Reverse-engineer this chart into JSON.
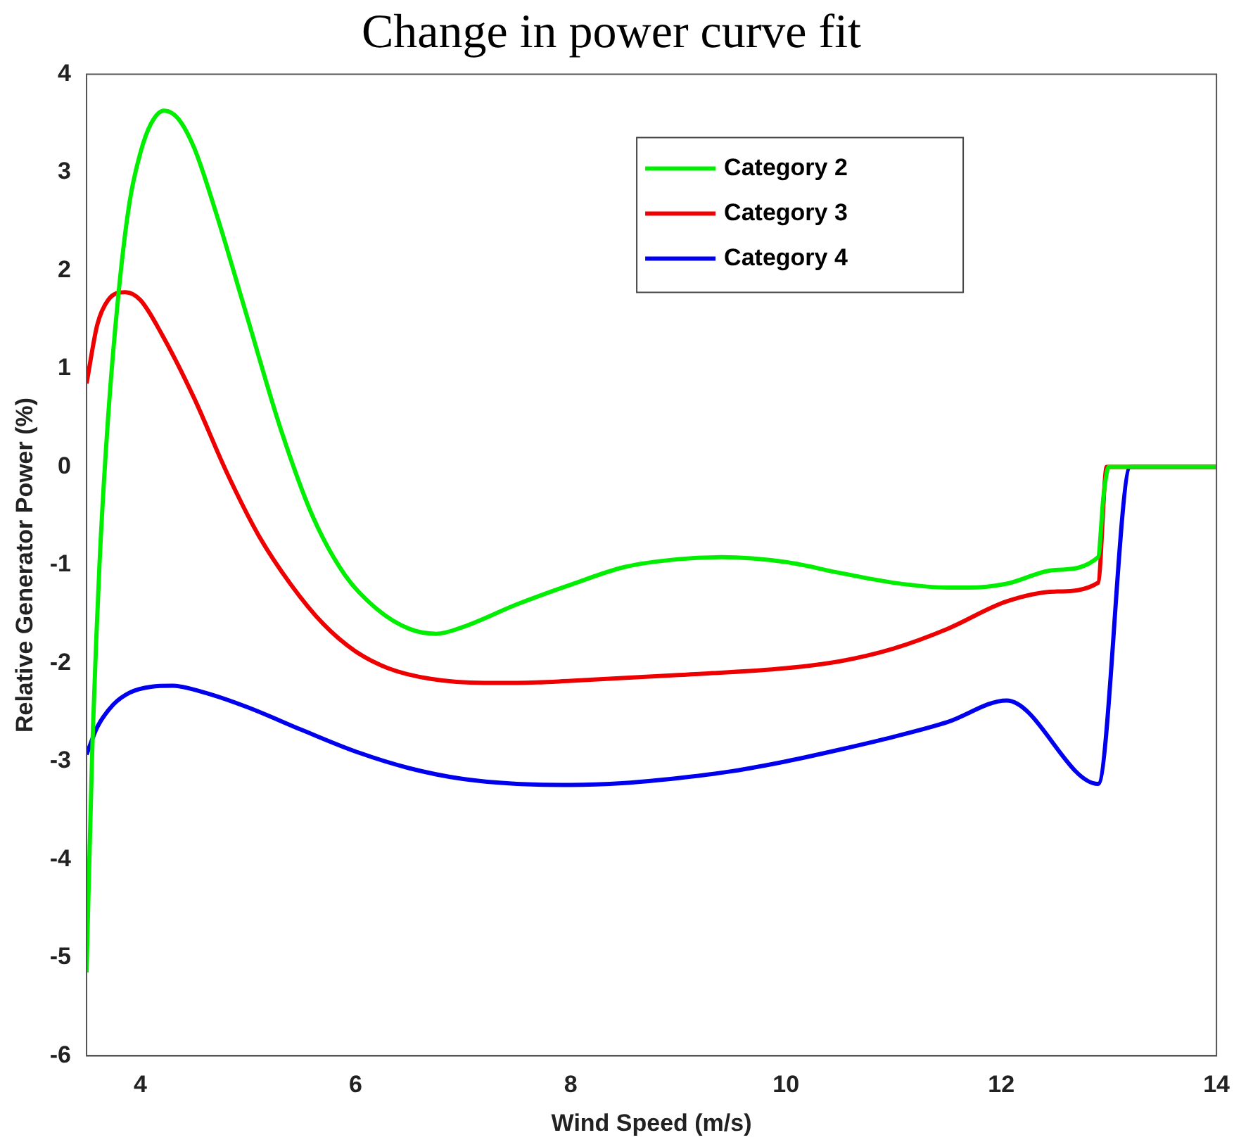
{
  "chart_data": {
    "type": "line",
    "title": "Change in power curve fit",
    "xlabel": "Wind Speed (m/s)",
    "ylabel": "Relative Generator Power (%)",
    "xlim": [
      3.5,
      14
    ],
    "xticks": [
      4,
      6,
      8,
      10,
      12,
      14
    ],
    "ylim": [
      -6,
      4
    ],
    "yticks": [
      -6,
      -5,
      -4,
      -3,
      -2,
      -1,
      0,
      1,
      2,
      3,
      4
    ],
    "grid": false,
    "legend": "top right",
    "marker": "none",
    "line_style": "solid",
    "series": [
      {
        "name": "Category 2",
        "color": "#00ee00",
        "x": [
          3.5,
          3.55,
          3.62,
          3.7,
          3.8,
          3.9,
          4.0,
          4.1,
          4.22,
          4.35,
          4.5,
          4.7,
          5.0,
          5.3,
          5.6,
          5.9,
          6.2,
          6.5,
          6.75,
          7.0,
          7.5,
          8,
          8.5,
          9,
          9.4,
          10,
          10.5,
          11,
          11.5,
          11.7,
          12.05,
          12.5,
          12.9,
          12.95,
          13.0,
          14
        ],
        "values": [
          -5.15,
          -3.0,
          -1.0,
          0.5,
          1.8,
          2.7,
          3.2,
          3.5,
          3.63,
          3.55,
          3.25,
          2.6,
          1.5,
          0.4,
          -0.5,
          -1.1,
          -1.45,
          -1.65,
          -1.7,
          -1.63,
          -1.4,
          -1.2,
          -1.02,
          -0.94,
          -0.92,
          -0.97,
          -1.08,
          -1.18,
          -1.23,
          -1.23,
          -1.19,
          -1.05,
          -0.92,
          -0.3,
          0,
          0
        ]
      },
      {
        "name": "Category 3",
        "color": "#ee0000",
        "x": [
          3.5,
          3.6,
          3.7,
          3.86,
          4.0,
          4.2,
          4.5,
          4.8,
          5.1,
          5.4,
          5.7,
          6.0,
          6.3,
          6.7,
          7.2,
          7.5,
          8,
          9,
          10,
          10.5,
          11,
          11.5,
          12.05,
          12.5,
          12.9,
          12.98,
          14
        ],
        "values": [
          0.85,
          1.45,
          1.7,
          1.78,
          1.7,
          1.35,
          0.7,
          -0.05,
          -0.7,
          -1.2,
          -1.6,
          -1.88,
          -2.05,
          -2.16,
          -2.2,
          -2.2,
          -2.18,
          -2.12,
          -2.05,
          -1.98,
          -1.85,
          -1.65,
          -1.37,
          -1.27,
          -1.18,
          0,
          0
        ]
      },
      {
        "name": "Category 4",
        "color": "#0000ee",
        "x": [
          3.5,
          3.6,
          3.75,
          3.9,
          4.1,
          4.3,
          4.6,
          5,
          5.5,
          6,
          6.5,
          7,
          7.5,
          8,
          8.5,
          9,
          9.5,
          10,
          10.5,
          11,
          11.5,
          12.05,
          12.9,
          13.2,
          14
        ],
        "values": [
          -2.93,
          -2.65,
          -2.42,
          -2.3,
          -2.24,
          -2.23,
          -2.3,
          -2.45,
          -2.68,
          -2.9,
          -3.07,
          -3.18,
          -3.23,
          -3.24,
          -3.22,
          -3.17,
          -3.1,
          -3.0,
          -2.88,
          -2.75,
          -2.6,
          -2.38,
          -3.23,
          0,
          0
        ]
      }
    ]
  }
}
